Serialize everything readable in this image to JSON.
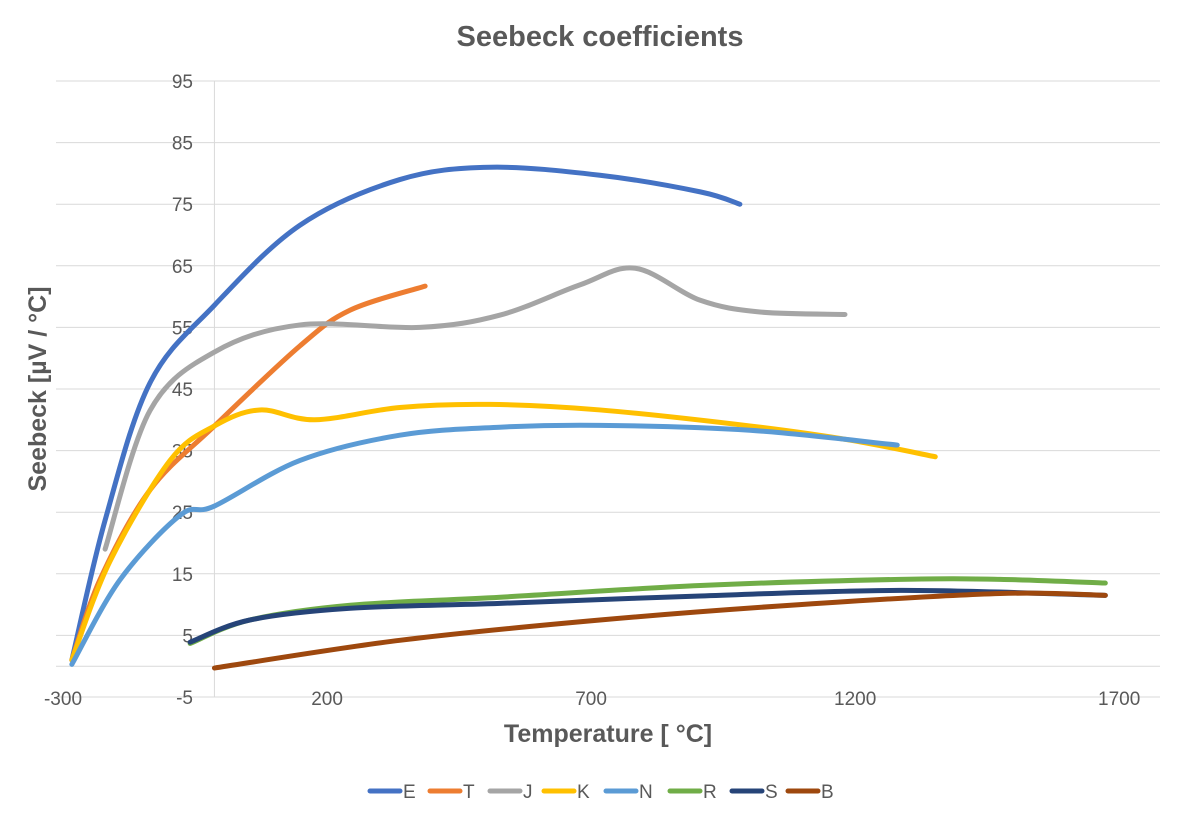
{
  "chart_data": {
    "type": "line",
    "title": "Seebeck coefficients",
    "xlabel": "Temperature [ °C]",
    "ylabel": "Seebeck [µV / °C]",
    "xlim": [
      -300,
      1800
    ],
    "ylim": [
      -5,
      95
    ],
    "x_ticks": [
      "-300",
      "200",
      "700",
      "1200",
      "1700"
    ],
    "x_tick_values": [
      -300,
      200,
      700,
      1200,
      1700
    ],
    "y_ticks": [
      "-5",
      "5",
      "15",
      "25",
      "35",
      "45",
      "55",
      "65",
      "75",
      "85",
      "95"
    ],
    "y_tick_values": [
      -5,
      5,
      15,
      25,
      35,
      45,
      55,
      65,
      75,
      85,
      95
    ],
    "grid": "horizontal",
    "legend_position": "bottom",
    "series": [
      {
        "name": "E",
        "color": "#4472C4",
        "points": [
          [
            -270,
            1
          ],
          [
            -207,
            23.7
          ],
          [
            -122,
            46
          ],
          [
            0,
            58.6
          ],
          [
            162,
            71.6
          ],
          [
            351,
            79
          ],
          [
            522,
            81
          ],
          [
            730,
            79.7
          ],
          [
            920,
            77
          ],
          [
            995,
            75
          ]
        ]
      },
      {
        "name": "T",
        "color": "#ED7D31",
        "points": [
          [
            -270,
            1
          ],
          [
            -217,
            14
          ],
          [
            -122,
            28.6
          ],
          [
            0,
            39
          ],
          [
            162,
            52
          ],
          [
            257,
            57.8
          ],
          [
            399,
            61.7
          ]
        ]
      },
      {
        "name": "J",
        "color": "#A5A5A5",
        "points": [
          [
            -207,
            19
          ],
          [
            -122,
            41.5
          ],
          [
            0,
            51
          ],
          [
            162,
            55.4
          ],
          [
            389,
            55
          ],
          [
            541,
            57
          ],
          [
            692,
            61.9
          ],
          [
            797,
            64.6
          ],
          [
            920,
            59.4
          ],
          [
            1033,
            57.5
          ],
          [
            1194,
            57.1
          ]
        ]
      },
      {
        "name": "K",
        "color": "#FFC000",
        "points": [
          [
            -270,
            1
          ],
          [
            -198,
            17
          ],
          [
            -84,
            33.4
          ],
          [
            0,
            39
          ],
          [
            86,
            41.6
          ],
          [
            190,
            40
          ],
          [
            351,
            42
          ],
          [
            522,
            42.5
          ],
          [
            730,
            41.6
          ],
          [
            1014,
            39
          ],
          [
            1204,
            36.7
          ],
          [
            1365,
            34
          ]
        ]
      },
      {
        "name": "N",
        "color": "#5B9BD5",
        "points": [
          [
            -270,
            0.3
          ],
          [
            -179,
            14
          ],
          [
            -65,
            24.5
          ],
          [
            0,
            26
          ],
          [
            162,
            33.4
          ],
          [
            351,
            37.5
          ],
          [
            540,
            38.8
          ],
          [
            730,
            39.1
          ],
          [
            1014,
            38.3
          ],
          [
            1293,
            35.9
          ]
        ]
      },
      {
        "name": "R",
        "color": "#70AD47",
        "points": [
          [
            -46,
            3.7
          ],
          [
            67,
            7.5
          ],
          [
            257,
            9.9
          ],
          [
            541,
            11.2
          ],
          [
            920,
            13.1
          ],
          [
            1299,
            14.1
          ],
          [
            1488,
            14.1
          ],
          [
            1687,
            13.5
          ]
        ]
      },
      {
        "name": "S",
        "color": "#264478",
        "points": [
          [
            -46,
            3.9
          ],
          [
            67,
            7.5
          ],
          [
            257,
            9.4
          ],
          [
            541,
            10.2
          ],
          [
            920,
            11.4
          ],
          [
            1299,
            12.3
          ],
          [
            1687,
            11.5
          ]
        ]
      },
      {
        "name": "B",
        "color": "#9E480E",
        "points": [
          [
            0,
            -0.3
          ],
          [
            351,
            4.2
          ],
          [
            730,
            7.5
          ],
          [
            1109,
            10
          ],
          [
            1488,
            11.8
          ],
          [
            1687,
            11.5
          ]
        ]
      }
    ]
  }
}
